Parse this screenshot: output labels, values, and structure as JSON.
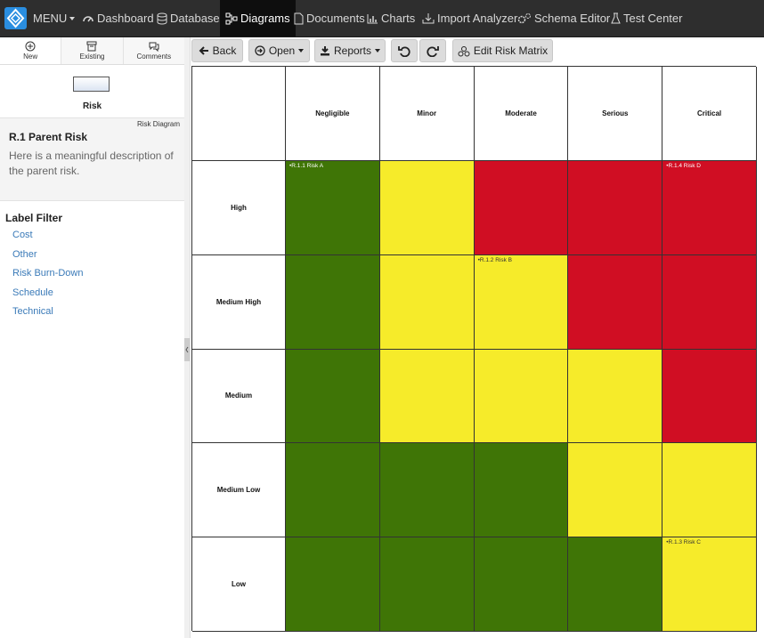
{
  "nav": {
    "menu": "MENU",
    "items": [
      "Dashboard",
      "Database",
      "Diagrams",
      "Documents",
      "Charts",
      "Import Analyzer",
      "Schema Editor",
      "Test Center"
    ],
    "active": 2
  },
  "sidebar": {
    "tabs": [
      "New",
      "Existing",
      "Comments"
    ],
    "shape_label": "Risk",
    "diagram_type": "Risk Diagram",
    "selected": {
      "title": "R.1 Parent Risk",
      "description": "Here is a meaningful description of the parent risk."
    },
    "label_filter": {
      "title": "Label Filter",
      "labels": [
        "Cost",
        "Other",
        "Risk Burn-Down",
        "Schedule",
        "Technical"
      ]
    }
  },
  "toolbar": {
    "buttons": [
      "Back",
      "Open",
      "Reports",
      "Edit Risk Matrix"
    ]
  },
  "matrix": {
    "columns": [
      "Negligible",
      "Minor",
      "Moderate",
      "Serious",
      "Critical"
    ],
    "rows": [
      "High",
      "Medium High",
      "Medium",
      "Medium Low",
      "Low"
    ],
    "cells": [
      [
        {
          "color": "#3f7506",
          "items": [
            "R.1.1 Risk A"
          ]
        },
        {
          "color": "#f6eb2a",
          "items": []
        },
        {
          "color": "#d00e23",
          "items": []
        },
        {
          "color": "#d00e23",
          "items": []
        },
        {
          "color": "#d00e23",
          "items": [
            "R.1.4 Risk D"
          ]
        }
      ],
      [
        {
          "color": "#3f7506",
          "items": []
        },
        {
          "color": "#f6eb2a",
          "items": []
        },
        {
          "color": "#f6eb2a",
          "items": [
            "R.1.2 Risk B"
          ]
        },
        {
          "color": "#d00e23",
          "items": []
        },
        {
          "color": "#d00e23",
          "items": []
        }
      ],
      [
        {
          "color": "#3f7506",
          "items": []
        },
        {
          "color": "#f6eb2a",
          "items": []
        },
        {
          "color": "#f6eb2a",
          "items": []
        },
        {
          "color": "#f6eb2a",
          "items": []
        },
        {
          "color": "#d00e23",
          "items": []
        }
      ],
      [
        {
          "color": "#3f7506",
          "items": []
        },
        {
          "color": "#3f7506",
          "items": []
        },
        {
          "color": "#3f7506",
          "items": []
        },
        {
          "color": "#f6eb2a",
          "items": []
        },
        {
          "color": "#f6eb2a",
          "items": []
        }
      ],
      [
        {
          "color": "#3f7506",
          "items": []
        },
        {
          "color": "#3f7506",
          "items": []
        },
        {
          "color": "#3f7506",
          "items": []
        },
        {
          "color": "#3f7506",
          "items": []
        },
        {
          "color": "#f6eb2a",
          "items": [
            "R.1.3 Risk C"
          ]
        }
      ]
    ]
  }
}
